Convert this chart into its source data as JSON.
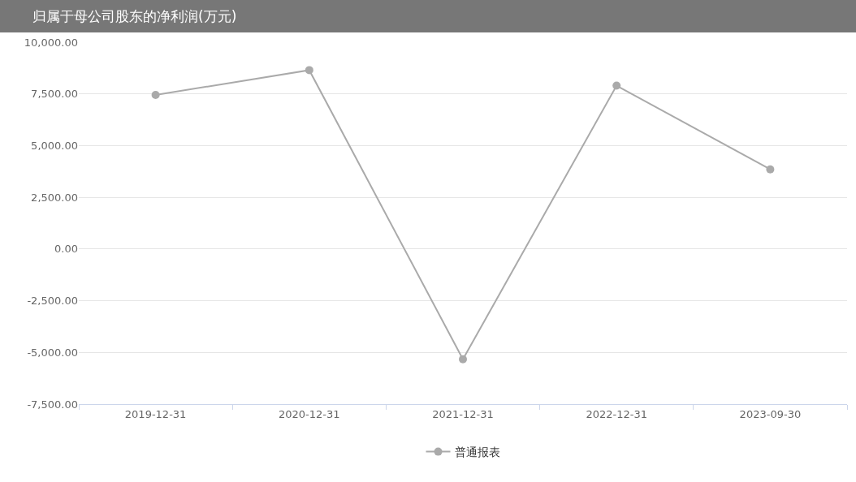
{
  "chart_data": {
    "type": "line",
    "title": "归属于母公司股东的净利润(万元)",
    "categories": [
      "2019-12-31",
      "2020-12-31",
      "2021-12-31",
      "2022-12-31",
      "2023-09-30"
    ],
    "series": [
      {
        "name": "普通报表",
        "color": "#aaaaaa",
        "values": [
          7450,
          8650,
          -5330,
          7900,
          3850
        ]
      }
    ],
    "ylim": [
      -7500,
      10000
    ],
    "yticks": [
      {
        "value": -7500,
        "label": "-7,500.00"
      },
      {
        "value": -5000,
        "label": "-5,000.00"
      },
      {
        "value": -2500,
        "label": "-2,500.00"
      },
      {
        "value": 0,
        "label": "0.00"
      },
      {
        "value": 2500,
        "label": "2,500.00"
      },
      {
        "value": 5000,
        "label": "5,000.00"
      },
      {
        "value": 7500,
        "label": "7,500.00"
      },
      {
        "value": 10000,
        "label": "10,000.00"
      }
    ],
    "grid": "y",
    "legend": "bottom",
    "marker": "circle"
  }
}
